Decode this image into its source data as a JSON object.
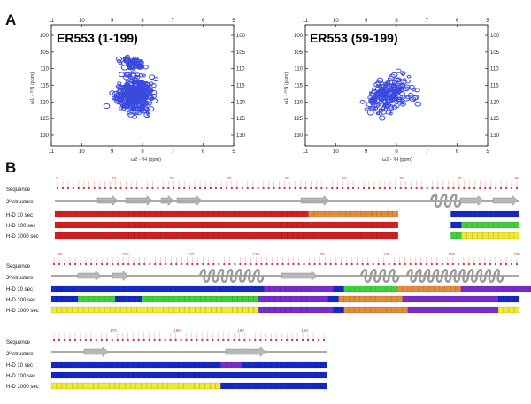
{
  "panel_a": {
    "label": "A",
    "spectra": [
      {
        "title": "ER553 (1-199)",
        "x_ticks": [
          "11",
          "10",
          "9",
          "8",
          "7",
          "6",
          "5"
        ],
        "y_ticks": [
          "100",
          "105",
          "110",
          "115",
          "120",
          "125",
          "130"
        ],
        "xlabel": "ω2 - ¹H (ppm)",
        "ylabel": "ω1 - ¹⁵N (ppm)"
      },
      {
        "title": "ER553 (59-199)",
        "x_ticks": [
          "11",
          "10",
          "9",
          "8",
          "7",
          "6",
          "5"
        ],
        "y_ticks": [
          "100",
          "105",
          "110",
          "115",
          "120",
          "125",
          "130"
        ],
        "xlabel": "ω2 - ¹H (ppm)",
        "ylabel": "ω1 - ¹⁵N (ppm)"
      }
    ]
  },
  "panel_b": {
    "label": "B",
    "row_labels": {
      "sequence": "Sequence",
      "structure": "2º structure",
      "hd10": "H-D 10 sec",
      "hd100": "H-D 100 sec",
      "hd1000": "H-D 1000 sec"
    },
    "block_1_numbers": [
      "1",
      "10",
      "20",
      "30",
      "40",
      "50",
      "60",
      "70",
      "80"
    ],
    "block_2_numbers": [
      "90",
      "100",
      "110",
      "120",
      "130",
      "140",
      "150",
      "160"
    ],
    "block_3_numbers": [
      "170",
      "180",
      "190",
      "199"
    ]
  },
  "colors": {
    "red": "#d41f1f",
    "orange": "#e38b3a",
    "blue": "#1428c8",
    "green": "#3fd13a",
    "yellow": "#f2ea2e",
    "purple": "#7a2bd0",
    "gray": "#bdbdbd",
    "peak": "#3a4ae0"
  }
}
